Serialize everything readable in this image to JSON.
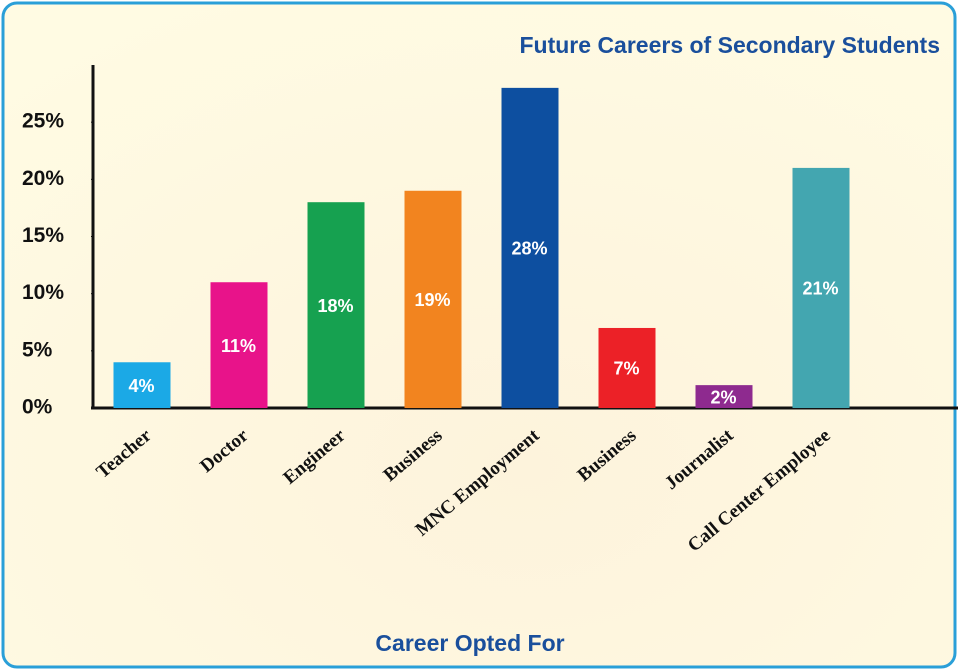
{
  "chart_data": {
    "type": "bar",
    "title": "Future Careers of Secondary Students",
    "x_label": "Career Opted For",
    "categories": [
      "Teacher",
      "Doctor",
      "Engineer",
      "Business",
      "MNC Employment",
      "Business",
      "Journalist",
      "Call Center Employee"
    ],
    "values": [
      4,
      11,
      18,
      19,
      28,
      7,
      2,
      21
    ],
    "value_labels": [
      "4%",
      "11%",
      "18%",
      "19%",
      "28%",
      "7%",
      "2%",
      "21%"
    ],
    "colors": [
      "#1ba9e6",
      "#e8138a",
      "#16a150",
      "#f2841f",
      "#0d4fa0",
      "#ec2127",
      "#8e2a8f",
      "#43a6b0"
    ],
    "ylim": [
      0,
      30
    ],
    "yticks": [
      {
        "value": 0,
        "label": "0%"
      },
      {
        "value": 5,
        "label": "5%"
      },
      {
        "value": 10,
        "label": "10%"
      },
      {
        "value": 15,
        "label": "15%"
      },
      {
        "value": 20,
        "label": "20%"
      },
      {
        "value": 25,
        "label": "25%"
      }
    ],
    "grid": false
  }
}
